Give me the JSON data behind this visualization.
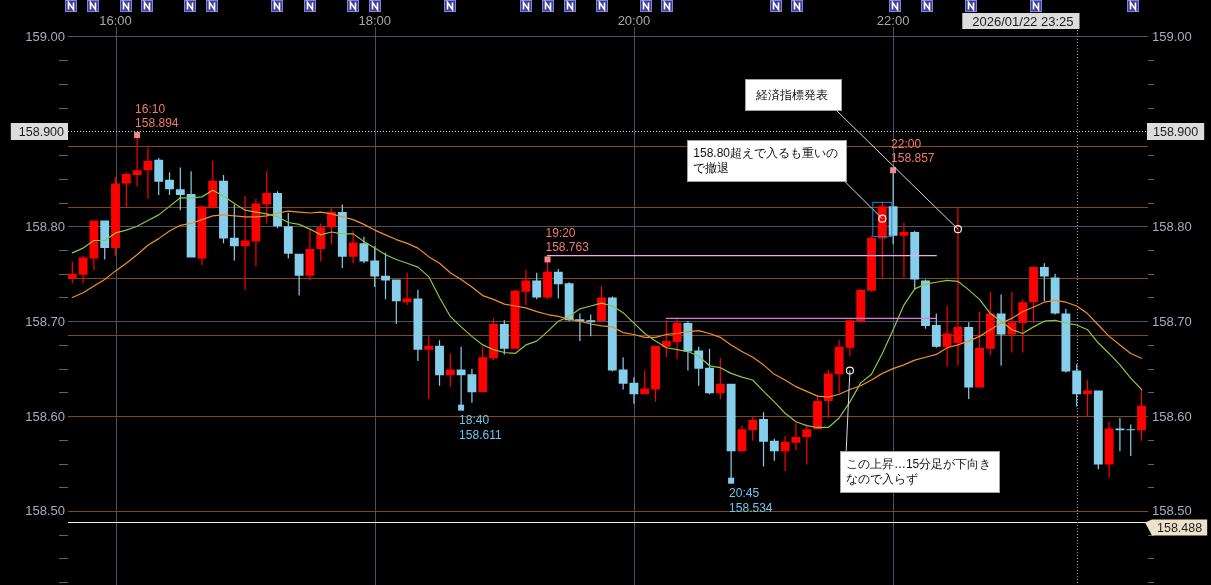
{
  "chart_data": {
    "type": "candlestick",
    "x": [
      "2026-01-22T15:40",
      "2026-01-22T15:45",
      "2026-01-22T15:50",
      "2026-01-22T15:55",
      "2026-01-22T16:00",
      "2026-01-22T16:05",
      "2026-01-22T16:10",
      "2026-01-22T16:15",
      "2026-01-22T16:20",
      "2026-01-22T16:25",
      "2026-01-22T16:30",
      "2026-01-22T16:35",
      "2026-01-22T16:40",
      "2026-01-22T16:45",
      "2026-01-22T16:50",
      "2026-01-22T16:55",
      "2026-01-22T17:00",
      "2026-01-22T17:05",
      "2026-01-22T17:10",
      "2026-01-22T17:15",
      "2026-01-22T17:20",
      "2026-01-22T17:25",
      "2026-01-22T17:30",
      "2026-01-22T17:35",
      "2026-01-22T17:40",
      "2026-01-22T17:45",
      "2026-01-22T17:50",
      "2026-01-22T17:55",
      "2026-01-22T18:00",
      "2026-01-22T18:05",
      "2026-01-22T18:10",
      "2026-01-22T18:15",
      "2026-01-22T18:20",
      "2026-01-22T18:25",
      "2026-01-22T18:30",
      "2026-01-22T18:35",
      "2026-01-22T18:40",
      "2026-01-22T18:45",
      "2026-01-22T18:50",
      "2026-01-22T18:55",
      "2026-01-22T19:00",
      "2026-01-22T19:05",
      "2026-01-22T19:10",
      "2026-01-22T19:15",
      "2026-01-22T19:20",
      "2026-01-22T19:25",
      "2026-01-22T19:30",
      "2026-01-22T19:35",
      "2026-01-22T19:40",
      "2026-01-22T19:45",
      "2026-01-22T19:50",
      "2026-01-22T19:55",
      "2026-01-22T20:00",
      "2026-01-22T20:05",
      "2026-01-22T20:10",
      "2026-01-22T20:15",
      "2026-01-22T20:20",
      "2026-01-22T20:25",
      "2026-01-22T20:30",
      "2026-01-22T20:35",
      "2026-01-22T20:40",
      "2026-01-22T20:45",
      "2026-01-22T20:50",
      "2026-01-22T20:55",
      "2026-01-22T21:00",
      "2026-01-22T21:05",
      "2026-01-22T21:10",
      "2026-01-22T21:15",
      "2026-01-22T21:20",
      "2026-01-22T21:25",
      "2026-01-22T21:30",
      "2026-01-22T21:35",
      "2026-01-22T21:40",
      "2026-01-22T21:45",
      "2026-01-22T21:50",
      "2026-01-22T21:55",
      "2026-01-22T22:00",
      "2026-01-22T22:05",
      "2026-01-22T22:10",
      "2026-01-22T22:15",
      "2026-01-22T22:20",
      "2026-01-22T22:25",
      "2026-01-22T22:30",
      "2026-01-22T22:35",
      "2026-01-22T22:40",
      "2026-01-22T22:45",
      "2026-01-22T22:50",
      "2026-01-22T22:55",
      "2026-01-22T23:00",
      "2026-01-22T23:05",
      "2026-01-22T23:10",
      "2026-01-22T23:15",
      "2026-01-22T23:20",
      "2026-01-22T23:25",
      "2026-01-22T23:30",
      "2026-01-22T23:35",
      "2026-01-22T23:40",
      "2026-01-22T23:45",
      "2026-01-22T23:50",
      "2026-01-22T23:55"
    ],
    "xlim": [
      "2026-01-22T15:38",
      "2026-01-22T23:58"
    ],
    "xticks": [
      {
        "value": "2026-01-22T16:00",
        "label": "16:00"
      },
      {
        "value": "2026-01-22T18:00",
        "label": "18:00"
      },
      {
        "value": "2026-01-22T20:00",
        "label": "20:00"
      },
      {
        "value": "2026-01-22T22:00",
        "label": "22:00"
      }
    ],
    "ylim": [
      158.422,
      159.01
    ],
    "yticks": [
      {
        "value": 158.425,
        "label": null
      },
      {
        "value": 158.45,
        "label": null
      },
      {
        "value": 158.475,
        "label": null
      },
      {
        "value": 158.5,
        "label": "158.50"
      },
      {
        "value": 158.525,
        "label": null
      },
      {
        "value": 158.55,
        "label": null
      },
      {
        "value": 158.575,
        "label": null
      },
      {
        "value": 158.6,
        "label": "158.60"
      },
      {
        "value": 158.625,
        "label": null
      },
      {
        "value": 158.65,
        "label": null
      },
      {
        "value": 158.675,
        "label": null
      },
      {
        "value": 158.7,
        "label": "158.70"
      },
      {
        "value": 158.725,
        "label": null
      },
      {
        "value": 158.75,
        "label": null
      },
      {
        "value": 158.775,
        "label": null
      },
      {
        "value": 158.8,
        "label": "158.80"
      },
      {
        "value": 158.825,
        "label": null
      },
      {
        "value": 158.85,
        "label": null
      },
      {
        "value": 158.875,
        "label": null
      },
      {
        "value": 158.9,
        "label": null
      },
      {
        "value": 158.925,
        "label": null
      },
      {
        "value": 158.95,
        "label": null
      },
      {
        "value": 158.975,
        "label": null
      },
      {
        "value": 159,
        "label": "159.00"
      }
    ],
    "y2lim": [
      158.422,
      159.01
    ],
    "y2ticks": [
      {
        "value": 158.425,
        "label": null
      },
      {
        "value": 158.45,
        "label": null
      },
      {
        "value": 158.475,
        "label": null
      },
      {
        "value": 158.5,
        "label": "158.50"
      },
      {
        "value": 158.525,
        "label": null
      },
      {
        "value": 158.55,
        "label": null
      },
      {
        "value": 158.575,
        "label": null
      },
      {
        "value": 158.6,
        "label": "158.60"
      },
      {
        "value": 158.625,
        "label": null
      },
      {
        "value": 158.65,
        "label": null
      },
      {
        "value": 158.675,
        "label": null
      },
      {
        "value": 158.7,
        "label": "158.70"
      },
      {
        "value": 158.725,
        "label": null
      },
      {
        "value": 158.75,
        "label": null
      },
      {
        "value": 158.775,
        "label": null
      },
      {
        "value": 158.8,
        "label": "158.80"
      },
      {
        "value": 158.825,
        "label": null
      },
      {
        "value": 158.85,
        "label": null
      },
      {
        "value": 158.875,
        "label": null
      },
      {
        "value": 158.9,
        "label": null
      },
      {
        "value": 158.925,
        "label": null
      },
      {
        "value": 158.95,
        "label": null
      },
      {
        "value": 158.975,
        "label": null
      },
      {
        "value": 159,
        "label": "159.00"
      }
    ],
    "grid": true,
    "series": [
      {
        "ohlc": [
          [
            158.745,
            158.763,
            158.74,
            158.75
          ],
          [
            158.749,
            158.769,
            158.74,
            158.767
          ],
          [
            158.766,
            158.806,
            158.754,
            158.806
          ],
          [
            158.806,
            158.806,
            158.765,
            158.777
          ],
          [
            158.777,
            158.852,
            158.769,
            158.845
          ],
          [
            158.845,
            158.857,
            158.82,
            158.855
          ],
          [
            158.854,
            158.894,
            158.842,
            158.859
          ],
          [
            158.859,
            158.883,
            158.829,
            158.869
          ],
          [
            158.87,
            158.872,
            158.833,
            158.847
          ],
          [
            158.849,
            158.857,
            158.833,
            158.839
          ],
          [
            158.839,
            158.862,
            158.817,
            158.833
          ],
          [
            158.834,
            158.858,
            158.767,
            158.767
          ],
          [
            158.766,
            158.821,
            158.759,
            158.821
          ],
          [
            158.82,
            158.869,
            158.82,
            158.848
          ],
          [
            158.848,
            158.854,
            158.782,
            158.787
          ],
          [
            158.788,
            158.823,
            158.764,
            158.779
          ],
          [
            158.779,
            158.832,
            158.733,
            158.785
          ],
          [
            158.784,
            158.829,
            158.758,
            158.824
          ],
          [
            158.823,
            158.858,
            158.803,
            158.835
          ],
          [
            158.835,
            158.837,
            158.798,
            158.8
          ],
          [
            158.8,
            158.814,
            158.766,
            158.771
          ],
          [
            158.771,
            158.771,
            158.727,
            158.748
          ],
          [
            158.748,
            158.796,
            158.743,
            158.776
          ],
          [
            158.776,
            158.803,
            158.763,
            158.799
          ],
          [
            158.799,
            158.819,
            158.781,
            158.815
          ],
          [
            158.815,
            158.823,
            158.756,
            158.768
          ],
          [
            158.768,
            158.795,
            158.761,
            158.783
          ],
          [
            158.782,
            158.789,
            158.761,
            158.763
          ],
          [
            158.764,
            158.779,
            158.736,
            158.747
          ],
          [
            158.748,
            158.772,
            158.723,
            158.743
          ],
          [
            158.744,
            158.744,
            158.697,
            158.721
          ],
          [
            158.72,
            158.751,
            158.717,
            158.724
          ],
          [
            158.724,
            158.733,
            158.658,
            158.67
          ],
          [
            158.67,
            158.684,
            158.618,
            158.674
          ],
          [
            158.674,
            158.68,
            158.632,
            158.643
          ],
          [
            158.643,
            158.666,
            158.631,
            158.649
          ],
          [
            158.649,
            158.673,
            158.611,
            158.643
          ],
          [
            158.644,
            158.65,
            158.614,
            158.625
          ],
          [
            158.625,
            158.673,
            158.625,
            158.662
          ],
          [
            158.661,
            158.703,
            158.659,
            158.697
          ],
          [
            158.697,
            158.701,
            158.665,
            158.671
          ],
          [
            158.671,
            158.733,
            158.671,
            158.732
          ],
          [
            158.731,
            158.754,
            158.717,
            158.743
          ],
          [
            158.743,
            158.751,
            158.723,
            158.725
          ],
          [
            158.725,
            158.763,
            158.723,
            158.752
          ],
          [
            158.752,
            158.755,
            158.724,
            158.739
          ],
          [
            158.74,
            158.741,
            158.7,
            158.701
          ],
          [
            158.702,
            158.708,
            158.679,
            158.7
          ],
          [
            158.701,
            158.707,
            158.684,
            158.699
          ],
          [
            158.7,
            158.737,
            158.7,
            158.725
          ],
          [
            158.725,
            158.726,
            158.647,
            158.648
          ],
          [
            158.649,
            158.662,
            158.628,
            158.634
          ],
          [
            158.635,
            158.641,
            158.613,
            158.623
          ],
          [
            158.623,
            158.648,
            158.623,
            158.629
          ],
          [
            158.628,
            158.674,
            158.615,
            158.674
          ],
          [
            158.673,
            158.701,
            158.662,
            158.679
          ],
          [
            158.678,
            158.702,
            158.66,
            158.698
          ],
          [
            158.698,
            158.7,
            158.648,
            158.668
          ],
          [
            158.669,
            158.673,
            158.632,
            158.65
          ],
          [
            158.651,
            158.671,
            158.623,
            158.624
          ],
          [
            158.624,
            158.661,
            158.618,
            158.634
          ],
          [
            158.634,
            158.634,
            158.534,
            158.563
          ],
          [
            158.563,
            158.59,
            158.563,
            158.586
          ],
          [
            158.585,
            158.6,
            158.574,
            158.596
          ],
          [
            158.597,
            158.604,
            158.547,
            158.573
          ],
          [
            158.574,
            158.576,
            158.553,
            158.563
          ],
          [
            158.563,
            158.579,
            158.542,
            158.573
          ],
          [
            158.572,
            158.593,
            158.564,
            158.578
          ],
          [
            158.578,
            158.591,
            158.549,
            158.586
          ],
          [
            158.586,
            158.622,
            158.586,
            158.616
          ],
          [
            158.616,
            158.649,
            158.598,
            158.645
          ],
          [
            158.644,
            158.68,
            158.624,
            158.673
          ],
          [
            158.672,
            158.701,
            158.663,
            158.701
          ],
          [
            158.7,
            158.734,
            158.698,
            158.733
          ],
          [
            158.732,
            158.79,
            158.731,
            158.788
          ],
          [
            158.787,
            158.825,
            158.746,
            158.821
          ],
          [
            158.821,
            158.857,
            158.781,
            158.79
          ],
          [
            158.79,
            158.804,
            158.746,
            158.794
          ],
          [
            158.794,
            158.795,
            158.733,
            158.744
          ],
          [
            158.743,
            158.744,
            158.692,
            158.695
          ],
          [
            158.696,
            158.708,
            158.672,
            158.673
          ],
          [
            158.673,
            158.716,
            158.652,
            158.687
          ],
          [
            158.677,
            158.819,
            158.653,
            158.694
          ],
          [
            158.694,
            158.699,
            158.618,
            158.63
          ],
          [
            158.63,
            158.71,
            158.63,
            158.672
          ],
          [
            158.671,
            158.731,
            158.664,
            158.708
          ],
          [
            158.708,
            158.728,
            158.653,
            158.686
          ],
          [
            158.686,
            158.731,
            158.667,
            158.699
          ],
          [
            158.698,
            158.723,
            158.667,
            158.72
          ],
          [
            158.72,
            158.758,
            158.698,
            158.757
          ],
          [
            158.757,
            158.761,
            158.721,
            158.747
          ],
          [
            158.746,
            158.75,
            158.707,
            158.708
          ],
          [
            158.708,
            158.713,
            158.646,
            158.647
          ],
          [
            158.648,
            158.655,
            158.61,
            158.623
          ],
          [
            158.623,
            158.638,
            158.599,
            158.627
          ],
          [
            158.627,
            158.627,
            158.544,
            158.549
          ],
          [
            158.549,
            158.594,
            158.535,
            158.587
          ],
          [
            158.587,
            158.598,
            158.563,
            158.585
          ],
          [
            158.586,
            158.591,
            158.558,
            158.585
          ],
          [
            158.585,
            158.628,
            158.574,
            158.611
          ]
        ],
        "colors": [
          "#ff0000",
          "#ff0000",
          "#ff0000",
          "#87ceeb",
          "#ff0000",
          "#ff0000",
          "#ff0000",
          "#ff0000",
          "#87ceeb",
          "#87ceeb",
          "#87ceeb",
          "#87ceeb",
          "#ff0000",
          "#ff0000",
          "#87ceeb",
          "#87ceeb",
          "#ff0000",
          "#ff0000",
          "#ff0000",
          "#87ceeb",
          "#87ceeb",
          "#87ceeb",
          "#ff0000",
          "#ff0000",
          "#ff0000",
          "#87ceeb",
          "#ff0000",
          "#87ceeb",
          "#87ceeb",
          "#87ceeb",
          "#87ceeb",
          "#ff0000",
          "#87ceeb",
          "#ff0000",
          "#87ceeb",
          "#ff0000",
          "#87ceeb",
          "#87ceeb",
          "#ff0000",
          "#ff0000",
          "#87ceeb",
          "#ff0000",
          "#ff0000",
          "#87ceeb",
          "#ff0000",
          "#87ceeb",
          "#87ceeb",
          "#87ceeb",
          "#87ceeb",
          "#ff0000",
          "#87ceeb",
          "#87ceeb",
          "#87ceeb",
          "#ff0000",
          "#ff0000",
          "#ff0000",
          "#ff0000",
          "#87ceeb",
          "#87ceeb",
          "#87ceeb",
          "#ff0000",
          "#87ceeb",
          "#ff0000",
          "#ff0000",
          "#87ceeb",
          "#87ceeb",
          "#ff0000",
          "#ff0000",
          "#ff0000",
          "#ff0000",
          "#ff0000",
          "#ff0000",
          "#ff0000",
          "#ff0000",
          "#ff0000",
          "#ff0000",
          "#87ceeb",
          "#ff0000",
          "#87ceeb",
          "#87ceeb",
          "#87ceeb",
          "#ff0000",
          "#ff0000",
          "#87ceeb",
          "#ff0000",
          "#ff0000",
          "#87ceeb",
          "#ff0000",
          "#ff0000",
          "#ff0000",
          "#87ceeb",
          "#87ceeb",
          "#87ceeb",
          "#87ceeb",
          "#ff0000",
          "#87ceeb",
          "#ff0000",
          "#87ceeb",
          "#87ceeb",
          "#ff0000"
        ]
      },
      {
        "type": "line",
        "color": "#8fc544",
        "values": [
          158.772,
          158.777,
          158.785,
          158.785,
          158.793,
          158.796,
          158.8,
          158.806,
          158.812,
          158.821,
          158.83,
          158.83,
          158.831,
          158.838,
          158.832,
          158.824,
          158.817,
          158.815,
          158.813,
          158.81,
          158.804,
          158.802,
          158.797,
          158.791,
          158.794,
          158.792,
          158.792,
          158.784,
          158.777,
          158.77,
          158.765,
          158.761,
          158.757,
          158.747,
          158.725,
          158.705,
          158.694,
          158.684,
          158.675,
          158.67,
          158.667,
          158.666,
          158.675,
          158.679,
          158.689,
          158.7,
          158.705,
          158.713,
          158.716,
          158.719,
          158.716,
          158.709,
          158.698,
          158.687,
          158.679,
          158.672,
          158.67,
          158.668,
          158.663,
          158.653,
          158.651,
          158.645,
          158.641,
          158.638,
          158.626,
          158.615,
          158.603,
          158.594,
          158.59,
          158.588,
          158.588,
          158.598,
          158.615,
          158.635,
          158.644,
          158.666,
          158.691,
          158.717,
          158.734,
          158.739,
          158.741,
          158.743,
          158.742,
          158.733,
          158.723,
          158.708,
          158.7,
          158.691,
          158.687,
          158.694,
          158.7,
          158.701,
          158.698,
          158.696,
          158.691,
          158.677,
          158.666,
          158.654,
          158.64,
          158.628
        ]
      },
      {
        "type": "line",
        "color": "#f0902c",
        "values": [
          158.725,
          158.73,
          158.737,
          158.744,
          158.753,
          158.761,
          158.77,
          158.78,
          158.787,
          158.795,
          158.801,
          158.803,
          158.807,
          158.811,
          158.812,
          158.811,
          158.81,
          158.81,
          158.811,
          158.814,
          158.816,
          158.815,
          158.814,
          158.815,
          158.813,
          158.81,
          158.807,
          158.802,
          158.796,
          158.791,
          158.786,
          158.782,
          158.777,
          158.768,
          158.761,
          158.751,
          158.744,
          158.736,
          158.727,
          158.723,
          158.718,
          158.716,
          158.714,
          158.71,
          158.707,
          158.705,
          158.702,
          158.7,
          158.697,
          158.695,
          158.694,
          158.688,
          158.686,
          158.683,
          158.683,
          158.686,
          158.687,
          158.689,
          158.69,
          158.687,
          158.683,
          158.675,
          158.668,
          158.662,
          158.654,
          158.644,
          158.638,
          158.631,
          158.626,
          158.621,
          158.62,
          158.623,
          158.628,
          158.632,
          158.638,
          158.645,
          158.65,
          158.654,
          158.659,
          158.662,
          158.665,
          158.672,
          158.675,
          158.679,
          158.684,
          158.691,
          158.698,
          158.703,
          158.71,
          158.715,
          158.72,
          158.722,
          158.72,
          158.716,
          158.708,
          158.696,
          158.684,
          158.675,
          158.666,
          158.661
        ]
      },
      {
        "type": "line",
        "color": "#f2a6ee",
        "x": [
          "2026-01-22T19:20",
          "2026-01-22T22:20"
        ],
        "values": [
          158.769,
          158.769
        ]
      },
      {
        "type": "line",
        "color": "#dc78dc",
        "x": [
          "2026-01-22T20:15",
          "2026-01-22T22:20"
        ],
        "values": [
          158.703,
          158.703
        ]
      }
    ],
    "ref_lines": [
      {
        "axis": "y",
        "value": 158.9,
        "label": "158.900",
        "color": "#d6d6d6",
        "line_style": "dotted"
      },
      {
        "axis": "y",
        "value": 158.885,
        "color": "#844818"
      },
      {
        "axis": "y",
        "value": 158.82,
        "color": "#844818"
      },
      {
        "axis": "y",
        "value": 158.745,
        "color": "#844818"
      },
      {
        "axis": "y",
        "value": 158.685,
        "color": "#844818"
      },
      {
        "axis": "y",
        "value": 158.6,
        "color": "#844818"
      },
      {
        "axis": "y",
        "value": 158.5,
        "color": "#844818"
      },
      {
        "axis": "y",
        "value": 158.488,
        "label": "158.488",
        "color": "#f3eedf",
        "line_style": "solid"
      },
      {
        "axis": "x",
        "value": "2026-01-22T23:25",
        "label": "2026/01/22 23:25",
        "color": "#9a9a9a",
        "line_style": "dotted"
      }
    ],
    "annotations": [
      {
        "text": "16:10\n158.894",
        "x": "2026-01-22T16:10",
        "y": 158.894
      },
      {
        "text": "18:40\n158.611",
        "x": "2026-01-22T18:40",
        "y": 158.611
      },
      {
        "text": "19:20\n158.763",
        "x": "2026-01-22T19:20",
        "y": 158.763
      },
      {
        "text": "20:45\n158.534",
        "x": "2026-01-22T20:45",
        "y": 158.534
      },
      {
        "text": "22:00\n158.857",
        "x": "2026-01-22T22:00",
        "y": 158.857
      },
      {
        "text": "158.80超えで入るも重いので撤退",
        "x": "2026-01-22T21:55",
        "y": 158.808
      },
      {
        "text": "経済指標発表",
        "x": "2026-01-22T22:30",
        "y": 158.797
      },
      {
        "text": "この上昇…15分足が下向きなので入らず",
        "x": "2026-01-22T21:40",
        "y": 158.648
      }
    ]
  }
}
